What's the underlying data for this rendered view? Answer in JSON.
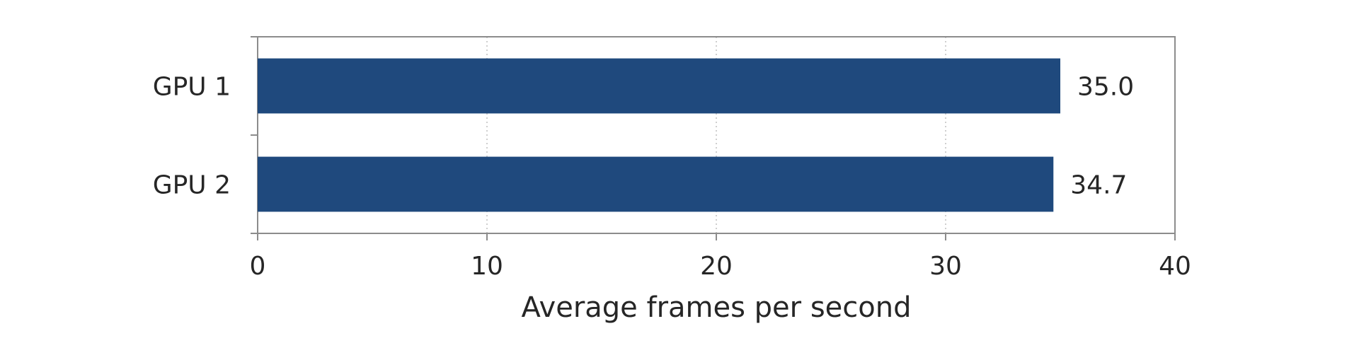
{
  "chart_data": {
    "type": "bar",
    "orientation": "horizontal",
    "categories": [
      "GPU 1",
      "GPU 2"
    ],
    "values": [
      35.0,
      34.7
    ],
    "data_labels": [
      "35.0",
      "34.7"
    ],
    "xlabel": "Average frames per second",
    "ylabel": "",
    "xlim": [
      0,
      40
    ],
    "x_ticks": [
      0,
      10,
      20,
      30,
      40
    ],
    "grid": "vertical dotted",
    "legend": "none",
    "bar_color": "#1f497d"
  }
}
